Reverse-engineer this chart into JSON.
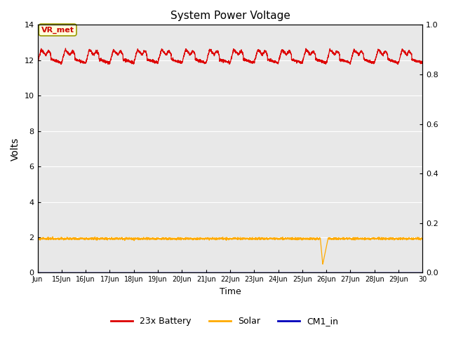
{
  "title": "System Power Voltage",
  "xlabel": "Time",
  "ylabel": "Volts",
  "xlim_days": [
    14,
    30
  ],
  "ylim_left": [
    0,
    14
  ],
  "ylim_right": [
    0.0,
    1.0
  ],
  "background_color": "#e8e8e8",
  "annotation_text": "VR_met",
  "annotation_color": "#cc0000",
  "annotation_bg": "#ffffdd",
  "annotation_border": "#999900",
  "xtick_labels": [
    "Jun",
    "15Jun",
    "16Jun",
    "17Jun",
    "18Jun",
    "19Jun",
    "20Jun",
    "21Jun",
    "22Jun",
    "23Jun",
    "24Jun",
    "25Jun",
    "26Jun",
    "27Jun",
    "28Jun",
    "29Jun",
    "30"
  ],
  "xtick_positions": [
    14,
    15,
    16,
    17,
    18,
    19,
    20,
    21,
    22,
    23,
    24,
    25,
    26,
    27,
    28,
    29,
    30
  ],
  "ytick_left": [
    0,
    2,
    4,
    6,
    8,
    10,
    12,
    14
  ],
  "ytick_right": [
    0.0,
    0.2,
    0.4,
    0.6,
    0.8,
    1.0
  ],
  "grid_color": "#ffffff",
  "line_battery_color": "#dd0000",
  "line_solar_color": "#ffaa00",
  "line_cm1_color": "#0000bb",
  "legend_labels": [
    "23x Battery",
    "Solar",
    "CM1_in"
  ],
  "figsize": [
    6.4,
    4.8
  ],
  "dpi": 100
}
